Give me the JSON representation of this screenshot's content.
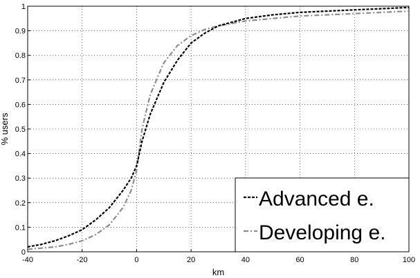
{
  "chart_data": {
    "type": "line",
    "title": "",
    "xlabel": "km",
    "ylabel": "% users",
    "xlim": [
      -40,
      100
    ],
    "ylim": [
      0,
      1
    ],
    "x_ticks": [
      -40,
      -20,
      0,
      20,
      40,
      60,
      80,
      100
    ],
    "x_tick_labels": [
      "-40",
      "-20",
      "0",
      "20",
      "40",
      "60",
      "80",
      "100"
    ],
    "y_ticks": [
      0,
      0.1,
      0.2,
      0.3,
      0.4,
      0.5,
      0.6,
      0.7,
      0.8,
      0.9,
      1
    ],
    "y_tick_labels": [
      "0",
      "0.1",
      "0.2",
      "0.3",
      "0.4",
      "0.5",
      "0.6",
      "0.7",
      "0.8",
      "0.9",
      "1"
    ],
    "grid": true,
    "legend_position": "bottom-right",
    "series": [
      {
        "name": "Advanced e.",
        "color": "#000000",
        "dash": "dashed",
        "x": [
          -40,
          -35,
          -30,
          -25,
          -20,
          -15,
          -10,
          -5,
          -2,
          0,
          2,
          5,
          10,
          15,
          20,
          25,
          30,
          40,
          50,
          60,
          70,
          80,
          90,
          100
        ],
        "y": [
          0.02,
          0.03,
          0.045,
          0.065,
          0.09,
          0.13,
          0.18,
          0.25,
          0.3,
          0.35,
          0.45,
          0.56,
          0.69,
          0.78,
          0.85,
          0.89,
          0.92,
          0.95,
          0.965,
          0.975,
          0.98,
          0.985,
          0.99,
          0.995
        ]
      },
      {
        "name": "Developing e.",
        "color": "#8c8c8c",
        "dash": "dash-dot",
        "x": [
          -40,
          -35,
          -30,
          -25,
          -20,
          -15,
          -10,
          -5,
          -2,
          0,
          2,
          5,
          10,
          15,
          20,
          25,
          30,
          40,
          50,
          60,
          70,
          80,
          90,
          100
        ],
        "y": [
          0.01,
          0.015,
          0.02,
          0.03,
          0.045,
          0.07,
          0.11,
          0.18,
          0.25,
          0.33,
          0.5,
          0.64,
          0.77,
          0.84,
          0.88,
          0.905,
          0.92,
          0.94,
          0.95,
          0.96,
          0.965,
          0.97,
          0.975,
          0.98
        ]
      }
    ]
  }
}
